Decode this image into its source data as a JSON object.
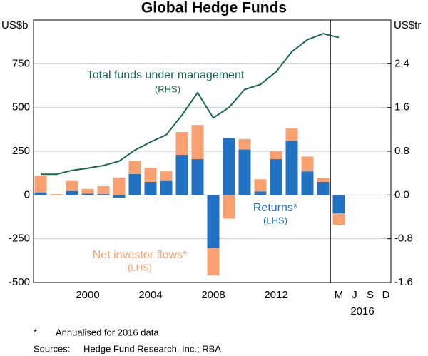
{
  "chart_data": {
    "type": "bar",
    "title": "Global Hedge Funds",
    "y_unit": "US$b",
    "y2_unit": "US$tr",
    "categories": [
      null,
      null,
      null,
      "2000",
      null,
      null,
      null,
      "2004",
      null,
      null,
      null,
      "2008",
      null,
      null,
      null,
      "2012",
      null,
      null,
      null,
      null
    ],
    "month_labels": [
      "M",
      "J",
      "S",
      "D"
    ],
    "month_year": "2016",
    "series": [
      {
        "name": "Returns*",
        "side_label": "(LHS)",
        "color": "#2272c3",
        "values": [
          15,
          0,
          23,
          8,
          5,
          -15,
          120,
          75,
          80,
          230,
          205,
          -305,
          325,
          260,
          20,
          205,
          310,
          135,
          75,
          -105
        ]
      },
      {
        "name": "Net investor flows*",
        "side_label": "(LHS)",
        "color": "#f8a070",
        "values": [
          95,
          5,
          57,
          27,
          45,
          100,
          75,
          80,
          55,
          130,
          195,
          -155,
          -135,
          60,
          70,
          45,
          70,
          85,
          20,
          -65
        ]
      },
      {
        "name": "Total funds under management",
        "side_label": "(RHS)",
        "color": "#17694a",
        "axis": "y2",
        "type": "line",
        "values": [
          0.38,
          0.38,
          0.45,
          0.49,
          0.54,
          0.62,
          0.82,
          0.97,
          1.1,
          1.46,
          1.87,
          1.41,
          1.6,
          1.93,
          2.02,
          2.25,
          2.62,
          2.84,
          2.95,
          2.88
        ]
      }
    ],
    "ylim": [
      -500,
      1000
    ],
    "yticks": [
      -500,
      -250,
      0,
      250,
      500,
      750
    ],
    "y2lim": [
      -1.6,
      3.2
    ],
    "y2ticks": [
      -1.6,
      -0.8,
      {
        "value": 0,
        "label": "0.0"
      },
      0.8,
      1.6,
      2.4
    ],
    "grid": true,
    "footnote_marker": "*",
    "footnote": "Annualised for 2016 data",
    "sources_label": "Sources:",
    "sources": "Hedge Fund Research, Inc.; RBA"
  }
}
